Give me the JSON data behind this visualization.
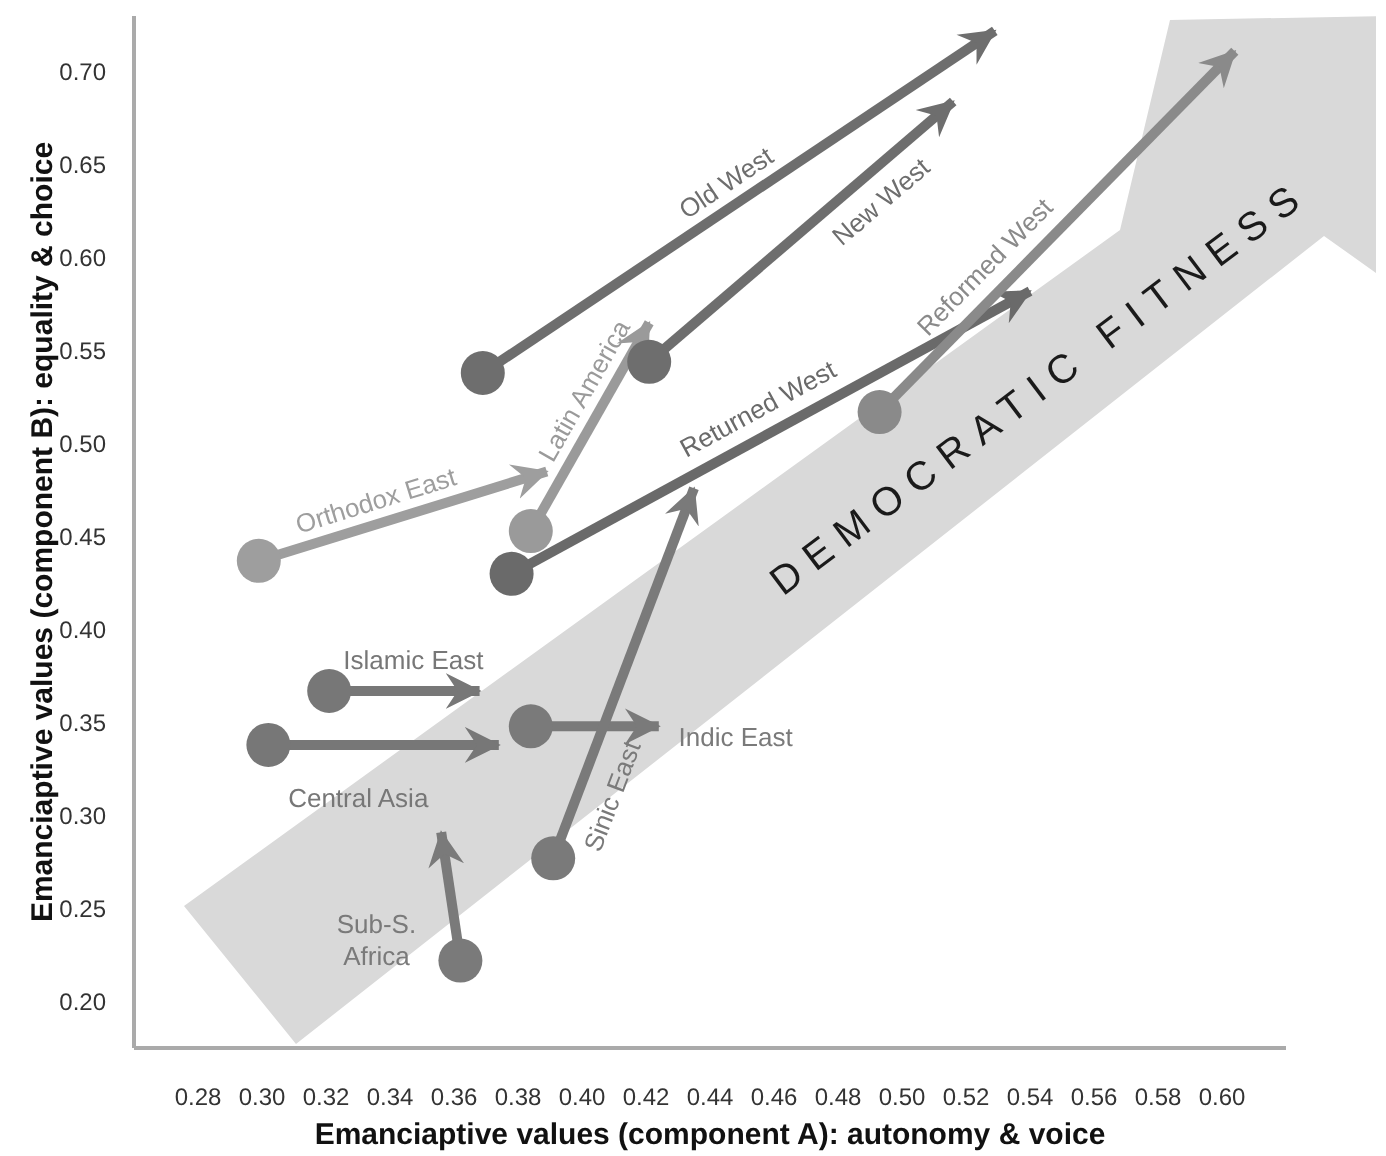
{
  "chart_data": {
    "type": "line",
    "xlabel": "Emanciaptive values (component A): autonomy & voice",
    "ylabel": "Emanciaptive values (component B): equality & choice",
    "xlim": [
      0.26,
      0.62
    ],
    "ylim": [
      0.175,
      0.73
    ],
    "xticks": [
      0.28,
      {
        "value": 0.3,
        "label": "0.30"
      },
      0.32,
      0.34,
      0.36,
      0.38,
      {
        "value": 0.4,
        "label": "0.40"
      },
      0.42,
      0.44,
      0.46,
      0.48,
      {
        "value": 0.5,
        "label": "0.50"
      },
      0.52,
      0.54,
      0.56,
      0.58,
      {
        "value": 0.6,
        "label": "0.60"
      }
    ],
    "yticks": [
      {
        "value": 0.2,
        "label": "0.20"
      },
      0.25,
      {
        "value": 0.3,
        "label": "0.30"
      },
      0.35,
      {
        "value": 0.4,
        "label": "0.40"
      },
      0.45,
      {
        "value": 0.5,
        "label": "0.50"
      },
      0.55,
      {
        "value": 0.6,
        "label": "0.60"
      },
      0.65,
      {
        "value": 0.7,
        "label": "0.70"
      }
    ],
    "marker": "circle",
    "legend": false,
    "annotations": [
      "DEMOCRATIC FITNESS"
    ],
    "series": [
      {
        "name": "Old West",
        "color": "#6e6e6e",
        "x": [
          0.369,
          0.529
        ],
        "values": [
          0.538,
          0.722
        ]
      },
      {
        "name": "New West",
        "color": "#6e6e6e",
        "x": [
          0.421,
          0.516
        ],
        "values": [
          0.544,
          0.684
        ]
      },
      {
        "name": "Latin America",
        "color": "#9a9a9a",
        "x": [
          0.384,
          0.421
        ],
        "values": [
          0.453,
          0.565
        ]
      },
      {
        "name": "Orthodox East",
        "color": "#9e9e9e",
        "x": [
          0.299,
          0.389
        ],
        "values": [
          0.437,
          0.485
        ]
      },
      {
        "name": "Returned West",
        "color": "#6a6a6a",
        "x": [
          0.378,
          0.54
        ],
        "values": [
          0.43,
          0.582
        ]
      },
      {
        "name": "Reformed West",
        "color": "#8a8a8a",
        "x": [
          0.493,
          0.604
        ],
        "values": [
          0.517,
          0.711
        ]
      },
      {
        "name": "Islamic East",
        "color": "#777777",
        "x": [
          0.321,
          0.368
        ],
        "values": [
          0.367,
          0.367
        ]
      },
      {
        "name": "Central Asia",
        "color": "#777777",
        "x": [
          0.302,
          0.374
        ],
        "values": [
          0.338,
          0.338
        ]
      },
      {
        "name": "Indic East",
        "color": "#7a7a7a",
        "x": [
          0.384,
          0.424
        ],
        "values": [
          0.348,
          0.348
        ]
      },
      {
        "name": "Sinic East",
        "color": "#7a7a7a",
        "x": [
          0.391,
          0.435
        ],
        "values": [
          0.277,
          0.476
        ]
      },
      {
        "name": "Sub-S. Africa",
        "color": "#7a7a7a",
        "x": [
          0.362,
          0.356
        ],
        "values": [
          0.222,
          0.291
        ]
      }
    ]
  }
}
